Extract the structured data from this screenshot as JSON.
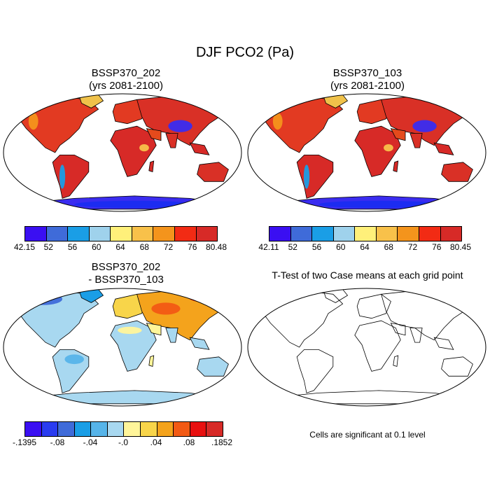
{
  "figure_title": "DJF PCO2 (Pa)",
  "panels": {
    "p1": {
      "title_line1": "BSSP370_202",
      "title_line2": "(yrs 2081-2100)",
      "colorbar": {
        "labels": [
          "42.15",
          "52",
          "56",
          "60",
          "64",
          "68",
          "72",
          "76",
          "80.48"
        ],
        "colors": [
          "#3a0ff2",
          "#3f6bd9",
          "#1a9ee6",
          "#9fd2ec",
          "#fff07a",
          "#f8c14a",
          "#f4941c",
          "#f22b14",
          "#d72a27"
        ]
      }
    },
    "p2": {
      "title_line1": "BSSP370_103",
      "title_line2": "(yrs 2081-2100)",
      "colorbar": {
        "labels": [
          "42.11",
          "52",
          "56",
          "60",
          "64",
          "68",
          "72",
          "76",
          "80.45"
        ],
        "colors": [
          "#3a0ff2",
          "#3f6bd9",
          "#1a9ee6",
          "#9fd2ec",
          "#fff07a",
          "#f8c14a",
          "#f4941c",
          "#f22b14",
          "#d72a27"
        ]
      }
    },
    "p3": {
      "title_line1": "BSSP370_202",
      "title_line2": "- BSSP370_103",
      "colorbar": {
        "labels": [
          "-.1395",
          "-.08",
          "-.04",
          "-.0",
          ".04",
          ".08",
          ".1852"
        ],
        "colors": [
          "#3a0ff2",
          "#2a3cf0",
          "#3f6bd9",
          "#1a9ee6",
          "#56b4e9",
          "#a8d8f0",
          "#fff59a",
          "#f8d54a",
          "#f4a31c",
          "#f25a14",
          "#e81010",
          "#d72a27"
        ]
      }
    },
    "p4": {
      "title": "T-Test of two Case means at each grid point",
      "note": "Cells are significant at 0.1 level"
    }
  }
}
